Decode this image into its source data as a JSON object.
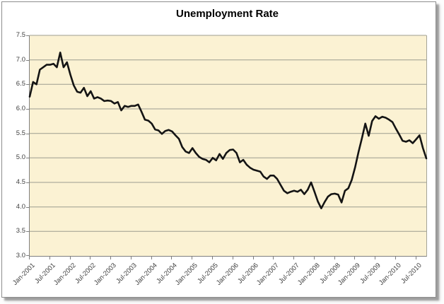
{
  "window": {
    "background_color": "#ffffff",
    "frame_border_color": "#8e8e8e"
  },
  "chart": {
    "title": "Unemployment Rate",
    "colors": {
      "plot_fill": "#fbf2d3",
      "gridline": "#9c9c90",
      "axis_line": "#7f7f7f",
      "series_line": "#141414",
      "tick_label": "#3f3f3f",
      "title_text": "#000000"
    }
  },
  "chart_data": {
    "type": "line",
    "title": "Unemployment Rate",
    "xlabel": "",
    "ylabel": "",
    "x_start": "Jan-2001",
    "x_end": "Oct-2010",
    "frequency": "monthly",
    "ylim": [
      3.0,
      7.5
    ],
    "y_ticks": [
      7.5,
      7.0,
      6.5,
      6.0,
      5.5,
      5.0,
      4.5,
      4.0,
      3.5,
      3.0
    ],
    "x_tick_interval_months": 6,
    "x_tick_labels": [
      "Jan-2001",
      "Jul-2001",
      "Jan-2002",
      "Jul-2002",
      "Jan-2003",
      "Jul-2003",
      "Jan-2004",
      "Jul-2004",
      "Jan-2005",
      "Jul-2005",
      "Jan-2006",
      "Jul-2006",
      "Jan-2007",
      "Jul-2007",
      "Jan-2008",
      "Jul-2008",
      "Jan-2009",
      "Jul-2009",
      "Jan-2010",
      "Jul-2010"
    ],
    "grid": "horizontal",
    "legend": "none",
    "series": [
      {
        "name": "Unemployment Rate",
        "values": [
          6.25,
          6.55,
          6.5,
          6.8,
          6.85,
          6.9,
          6.9,
          6.92,
          6.85,
          7.15,
          6.85,
          6.95,
          6.7,
          6.48,
          6.35,
          6.33,
          6.43,
          6.26,
          6.36,
          6.21,
          6.24,
          6.21,
          6.16,
          6.17,
          6.16,
          6.11,
          6.14,
          5.97,
          6.06,
          6.04,
          6.06,
          6.06,
          6.09,
          5.94,
          5.78,
          5.76,
          5.7,
          5.58,
          5.56,
          5.49,
          5.55,
          5.57,
          5.54,
          5.46,
          5.39,
          5.22,
          5.13,
          5.1,
          5.2,
          5.1,
          5.02,
          4.98,
          4.96,
          4.91,
          5.0,
          4.95,
          5.08,
          4.98,
          5.1,
          5.16,
          5.17,
          5.1,
          4.91,
          4.96,
          4.86,
          4.8,
          4.76,
          4.74,
          4.72,
          4.62,
          4.57,
          4.64,
          4.64,
          4.57,
          4.45,
          4.33,
          4.28,
          4.31,
          4.33,
          4.31,
          4.35,
          4.26,
          4.35,
          4.5,
          4.31,
          4.11,
          3.97,
          4.1,
          4.21,
          4.26,
          4.27,
          4.25,
          4.09,
          4.33,
          4.38,
          4.55,
          4.81,
          5.12,
          5.4,
          5.7,
          5.45,
          5.75,
          5.85,
          5.8,
          5.84,
          5.82,
          5.78,
          5.73,
          5.6,
          5.48,
          5.35,
          5.33,
          5.36,
          5.3,
          5.38,
          5.46,
          5.2,
          4.99
        ]
      }
    ]
  }
}
